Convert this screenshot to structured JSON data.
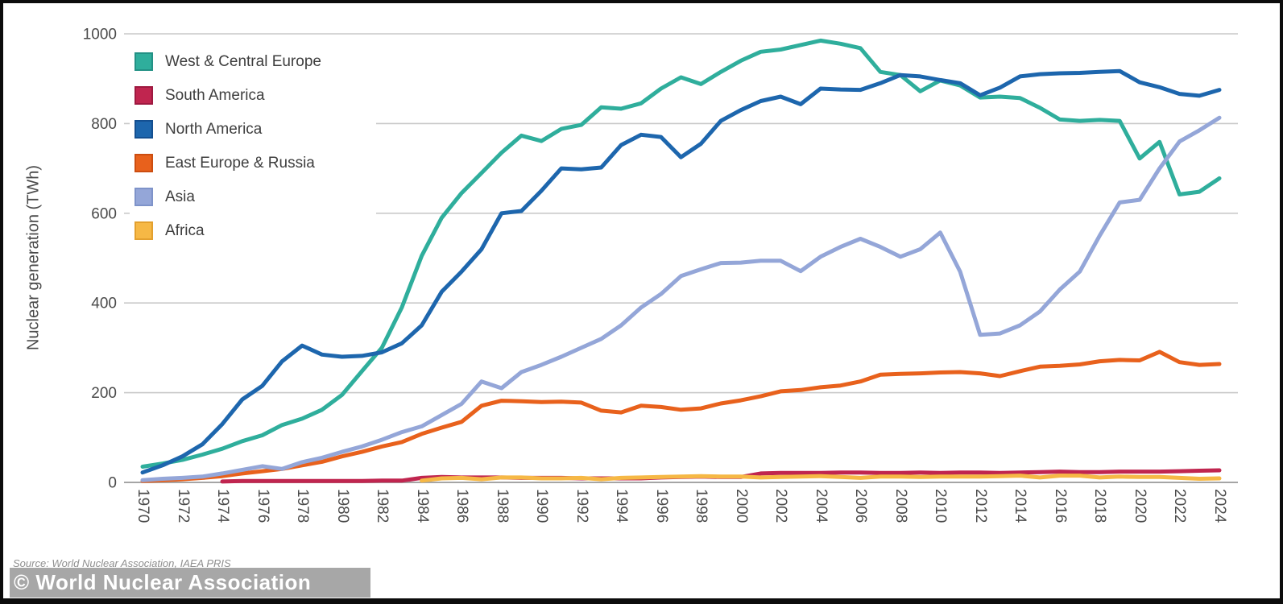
{
  "page": {
    "source_text": "Source: World Nuclear Association, IAEA PRIS",
    "watermark_text": "© World Nuclear Association"
  },
  "legend": {
    "items": [
      {
        "label": "West & Central Europe",
        "color": "#2fae9c",
        "border": "#239185"
      },
      {
        "label": "South America",
        "color": "#c0254f",
        "border": "#9e1940"
      },
      {
        "label": "North America",
        "color": "#1d66ad",
        "border": "#144f90"
      },
      {
        "label": "East Europe & Russia",
        "color": "#e8611c",
        "border": "#cc4d10"
      },
      {
        "label": "Asia",
        "color": "#94a6d8",
        "border": "#7e93c9"
      },
      {
        "label": "Africa",
        "color": "#f6b845",
        "border": "#e3a02e"
      }
    ]
  },
  "chart_data": {
    "type": "line",
    "ylabel": "Nuclear generation (TWh)",
    "ylim": [
      0,
      1000
    ],
    "yticks": [
      0,
      200,
      400,
      600,
      800,
      1000
    ],
    "grid": "horizontal",
    "legend_position": "upper-left",
    "x_ticks": [
      1970,
      1972,
      1974,
      1976,
      1978,
      1980,
      1982,
      1984,
      1986,
      1988,
      1990,
      1992,
      1994,
      1996,
      1998,
      2000,
      2002,
      2004,
      2006,
      2008,
      2010,
      2012,
      2014,
      2016,
      2018,
      2020,
      2022,
      2024
    ],
    "x": [
      1970,
      1971,
      1972,
      1973,
      1974,
      1975,
      1976,
      1977,
      1978,
      1979,
      1980,
      1981,
      1982,
      1983,
      1984,
      1985,
      1986,
      1987,
      1988,
      1989,
      1990,
      1991,
      1992,
      1993,
      1994,
      1995,
      1996,
      1997,
      1998,
      1999,
      2000,
      2001,
      2002,
      2003,
      2004,
      2005,
      2006,
      2007,
      2008,
      2009,
      2010,
      2011,
      2012,
      2013,
      2014,
      2015,
      2016,
      2017,
      2018,
      2019,
      2020,
      2021,
      2022,
      2023,
      2024
    ],
    "series": [
      {
        "name": "West & Central Europe",
        "color": "#2fae9c",
        "values": [
          35,
          42,
          50,
          62,
          75,
          92,
          105,
          128,
          142,
          162,
          195,
          248,
          300,
          390,
          505,
          590,
          645,
          690,
          735,
          773,
          761,
          788,
          797,
          836,
          833,
          845,
          878,
          903,
          888,
          915,
          940,
          960,
          965,
          975,
          985,
          978,
          968,
          915,
          908,
          872,
          896,
          885,
          858,
          860,
          857,
          835,
          809,
          806,
          808,
          806,
          722,
          759,
          642,
          648,
          678
        ]
      },
      {
        "name": "South America",
        "color": "#c0254f",
        "values": [
          null,
          null,
          null,
          null,
          2,
          3,
          3,
          3,
          3,
          3,
          3,
          3,
          4,
          4,
          10,
          12,
          11,
          11,
          11,
          10,
          10,
          10,
          9,
          9,
          9,
          9,
          11,
          12,
          13,
          12,
          12,
          20,
          21,
          21,
          21,
          22,
          22,
          21,
          21,
          22,
          21,
          22,
          22,
          21,
          22,
          23,
          24,
          23,
          23,
          24,
          24,
          24,
          25,
          26,
          27
        ]
      },
      {
        "name": "North America",
        "color": "#1d66ad",
        "values": [
          22,
          38,
          58,
          85,
          130,
          185,
          215,
          270,
          305,
          285,
          280,
          282,
          290,
          310,
          350,
          425,
          470,
          520,
          600,
          605,
          650,
          700,
          698,
          702,
          752,
          775,
          770,
          725,
          755,
          806,
          830,
          850,
          860,
          843,
          878,
          876,
          875,
          890,
          908,
          905,
          897,
          890,
          863,
          880,
          905,
          910,
          912,
          913,
          915,
          917,
          892,
          881,
          866,
          862,
          875
        ]
      },
      {
        "name": "East Europe & Russia",
        "color": "#e8611c",
        "values": [
          3,
          5,
          7,
          10,
          14,
          20,
          25,
          30,
          38,
          46,
          58,
          68,
          80,
          90,
          108,
          122,
          135,
          171,
          182,
          181,
          179,
          180,
          178,
          160,
          156,
          171,
          168,
          162,
          165,
          176,
          183,
          192,
          203,
          206,
          212,
          216,
          225,
          240,
          242,
          243,
          245,
          246,
          243,
          237,
          248,
          258,
          260,
          263,
          270,
          273,
          272,
          291,
          268,
          262,
          264
        ]
      },
      {
        "name": "Asia",
        "color": "#94a6d8",
        "values": [
          5,
          8,
          10,
          13,
          20,
          28,
          36,
          30,
          45,
          55,
          68,
          80,
          95,
          112,
          125,
          150,
          175,
          225,
          210,
          246,
          262,
          280,
          300,
          320,
          350,
          390,
          420,
          460,
          475,
          489,
          490,
          494,
          494,
          471,
          503,
          525,
          543,
          525,
          503,
          520,
          557,
          470,
          329,
          332,
          350,
          381,
          430,
          470,
          550,
          624,
          630,
          700,
          760,
          785,
          813
        ]
      },
      {
        "name": "Africa",
        "color": "#f6b845",
        "values": [
          null,
          null,
          null,
          null,
          null,
          null,
          null,
          null,
          null,
          null,
          null,
          null,
          null,
          null,
          4,
          9,
          10,
          7,
          11,
          11,
          9,
          9,
          10,
          7,
          10,
          11,
          12,
          13,
          14,
          13,
          13,
          11,
          12,
          13,
          14,
          12,
          10,
          13,
          13,
          12,
          13,
          13,
          13,
          14,
          15,
          11,
          15,
          15,
          11,
          13,
          12,
          12,
          10,
          8,
          9
        ]
      }
    ]
  }
}
